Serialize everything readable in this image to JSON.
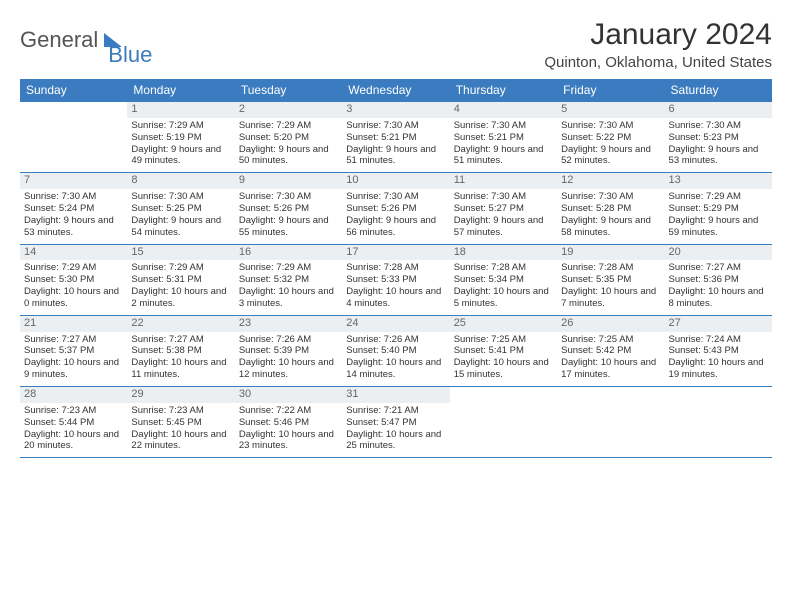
{
  "logo": {
    "part1": "General",
    "part2": "Blue"
  },
  "title": "January 2024",
  "location": "Quinton, Oklahoma, United States",
  "dayHeaders": [
    "Sunday",
    "Monday",
    "Tuesday",
    "Wednesday",
    "Thursday",
    "Friday",
    "Saturday"
  ],
  "colors": {
    "accent": "#3b7bbf",
    "daynum_bg": "#eceff2",
    "text": "#333333"
  },
  "weeks": [
    [
      null,
      {
        "n": "1",
        "sunrise": "7:29 AM",
        "sunset": "5:19 PM",
        "daylight": "9 hours and 49 minutes."
      },
      {
        "n": "2",
        "sunrise": "7:29 AM",
        "sunset": "5:20 PM",
        "daylight": "9 hours and 50 minutes."
      },
      {
        "n": "3",
        "sunrise": "7:30 AM",
        "sunset": "5:21 PM",
        "daylight": "9 hours and 51 minutes."
      },
      {
        "n": "4",
        "sunrise": "7:30 AM",
        "sunset": "5:21 PM",
        "daylight": "9 hours and 51 minutes."
      },
      {
        "n": "5",
        "sunrise": "7:30 AM",
        "sunset": "5:22 PM",
        "daylight": "9 hours and 52 minutes."
      },
      {
        "n": "6",
        "sunrise": "7:30 AM",
        "sunset": "5:23 PM",
        "daylight": "9 hours and 53 minutes."
      }
    ],
    [
      {
        "n": "7",
        "sunrise": "7:30 AM",
        "sunset": "5:24 PM",
        "daylight": "9 hours and 53 minutes."
      },
      {
        "n": "8",
        "sunrise": "7:30 AM",
        "sunset": "5:25 PM",
        "daylight": "9 hours and 54 minutes."
      },
      {
        "n": "9",
        "sunrise": "7:30 AM",
        "sunset": "5:26 PM",
        "daylight": "9 hours and 55 minutes."
      },
      {
        "n": "10",
        "sunrise": "7:30 AM",
        "sunset": "5:26 PM",
        "daylight": "9 hours and 56 minutes."
      },
      {
        "n": "11",
        "sunrise": "7:30 AM",
        "sunset": "5:27 PM",
        "daylight": "9 hours and 57 minutes."
      },
      {
        "n": "12",
        "sunrise": "7:30 AM",
        "sunset": "5:28 PM",
        "daylight": "9 hours and 58 minutes."
      },
      {
        "n": "13",
        "sunrise": "7:29 AM",
        "sunset": "5:29 PM",
        "daylight": "9 hours and 59 minutes."
      }
    ],
    [
      {
        "n": "14",
        "sunrise": "7:29 AM",
        "sunset": "5:30 PM",
        "daylight": "10 hours and 0 minutes."
      },
      {
        "n": "15",
        "sunrise": "7:29 AM",
        "sunset": "5:31 PM",
        "daylight": "10 hours and 2 minutes."
      },
      {
        "n": "16",
        "sunrise": "7:29 AM",
        "sunset": "5:32 PM",
        "daylight": "10 hours and 3 minutes."
      },
      {
        "n": "17",
        "sunrise": "7:28 AM",
        "sunset": "5:33 PM",
        "daylight": "10 hours and 4 minutes."
      },
      {
        "n": "18",
        "sunrise": "7:28 AM",
        "sunset": "5:34 PM",
        "daylight": "10 hours and 5 minutes."
      },
      {
        "n": "19",
        "sunrise": "7:28 AM",
        "sunset": "5:35 PM",
        "daylight": "10 hours and 7 minutes."
      },
      {
        "n": "20",
        "sunrise": "7:27 AM",
        "sunset": "5:36 PM",
        "daylight": "10 hours and 8 minutes."
      }
    ],
    [
      {
        "n": "21",
        "sunrise": "7:27 AM",
        "sunset": "5:37 PM",
        "daylight": "10 hours and 9 minutes."
      },
      {
        "n": "22",
        "sunrise": "7:27 AM",
        "sunset": "5:38 PM",
        "daylight": "10 hours and 11 minutes."
      },
      {
        "n": "23",
        "sunrise": "7:26 AM",
        "sunset": "5:39 PM",
        "daylight": "10 hours and 12 minutes."
      },
      {
        "n": "24",
        "sunrise": "7:26 AM",
        "sunset": "5:40 PM",
        "daylight": "10 hours and 14 minutes."
      },
      {
        "n": "25",
        "sunrise": "7:25 AM",
        "sunset": "5:41 PM",
        "daylight": "10 hours and 15 minutes."
      },
      {
        "n": "26",
        "sunrise": "7:25 AM",
        "sunset": "5:42 PM",
        "daylight": "10 hours and 17 minutes."
      },
      {
        "n": "27",
        "sunrise": "7:24 AM",
        "sunset": "5:43 PM",
        "daylight": "10 hours and 19 minutes."
      }
    ],
    [
      {
        "n": "28",
        "sunrise": "7:23 AM",
        "sunset": "5:44 PM",
        "daylight": "10 hours and 20 minutes."
      },
      {
        "n": "29",
        "sunrise": "7:23 AM",
        "sunset": "5:45 PM",
        "daylight": "10 hours and 22 minutes."
      },
      {
        "n": "30",
        "sunrise": "7:22 AM",
        "sunset": "5:46 PM",
        "daylight": "10 hours and 23 minutes."
      },
      {
        "n": "31",
        "sunrise": "7:21 AM",
        "sunset": "5:47 PM",
        "daylight": "10 hours and 25 minutes."
      },
      null,
      null,
      null
    ]
  ]
}
